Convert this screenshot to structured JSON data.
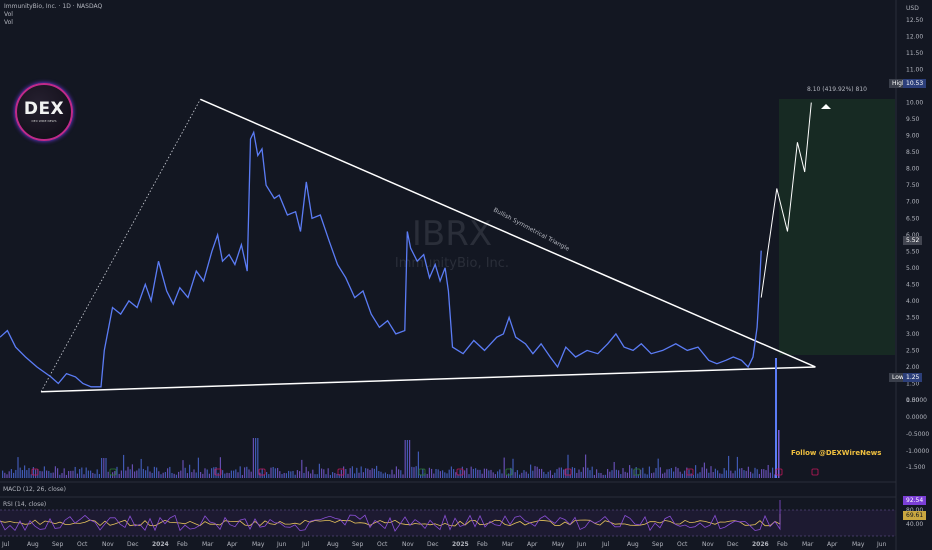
{
  "header": {
    "symbol": "ImmunityBio, Inc. · 1D · NASDAQ",
    "vol1": "Vol",
    "vol2": "Vol"
  },
  "watermark": {
    "ticker": "IBRX",
    "name": "ImmunityBio, Inc."
  },
  "logo": {
    "text": "DEX",
    "sub": "DEX WIRE NEWS"
  },
  "follow": "Follow @DEXWireNews",
  "pattern_label": "Bullish Symmetrical Triangle",
  "target_label": "8.10 (419.92%) 810",
  "indicators": {
    "macd": "MACD (12, 26, close)",
    "rsi": "RSI (14, close)"
  },
  "price_axis": {
    "currency": "USD",
    "ticks": [
      "12.50",
      "12.00",
      "11.50",
      "11.00",
      "10.50",
      "10.00",
      "9.50",
      "9.00",
      "8.50",
      "8.00",
      "7.50",
      "7.00",
      "6.50",
      "6.00",
      "5.50",
      "5.00",
      "4.50",
      "4.00",
      "3.50",
      "3.00",
      "2.50",
      "2.00",
      "1.50",
      "1.00"
    ],
    "high_label": "High",
    "high_value": "10.53",
    "current_value": "5.52",
    "low_label": "Low",
    "low_value": "1.25"
  },
  "macd_axis": {
    "ticks": [
      "0.5000",
      "0.0000",
      "-0.5000",
      "-1.0000",
      "-1.500"
    ]
  },
  "rsi_axis": {
    "ticks": [
      "80.00",
      "40.00"
    ],
    "rsi_value": "92.54",
    "ma_value": "69.61"
  },
  "time_axis": [
    "Jul",
    "Aug",
    "Sep",
    "Oct",
    "Nov",
    "Dec",
    "2024",
    "Feb",
    "Mar",
    "Apr",
    "May",
    "Jun",
    "Jul",
    "Aug",
    "Sep",
    "Oct",
    "Nov",
    "Dec",
    "2025",
    "Feb",
    "Mar",
    "Apr",
    "May",
    "Jun",
    "Jul",
    "Aug",
    "Sep",
    "Oct",
    "Nov",
    "Dec",
    "2026",
    "Feb",
    "Mar",
    "Apr",
    "May",
    "Jun"
  ],
  "colors": {
    "bg": "#131722",
    "price_line": "#5b7cf5",
    "price_line_hot": "#8f6cf5",
    "trend": "#ffffff",
    "target_box": "#1b3a25",
    "macd_hist": "#7a5cd6",
    "rsi_line": "#8a4fd6",
    "rsi_ma": "#e6c35c"
  },
  "chart_data": {
    "type": "line",
    "title": "ImmunityBio, Inc. · 1D · NASDAQ",
    "xlabel": "",
    "ylabel": "USD",
    "ylim": [
      1.0,
      12.5
    ],
    "series": [
      {
        "name": "",
        "points": [
          [
            "2023-07-01",
            2.9
          ],
          [
            "2023-07-10",
            3.1
          ],
          [
            "2023-07-20",
            2.6
          ],
          [
            "2023-08-01",
            2.3
          ],
          [
            "2023-08-15",
            2.0
          ],
          [
            "2023-09-01",
            1.7
          ],
          [
            "2023-09-10",
            1.5
          ],
          [
            "2023-09-20",
            1.8
          ],
          [
            "2023-10-01",
            1.7
          ],
          [
            "2023-10-10",
            1.5
          ],
          [
            "2023-10-20",
            1.4
          ],
          [
            "2023-11-01",
            1.4
          ],
          [
            "2023-11-05",
            2.5
          ],
          [
            "2023-11-15",
            3.8
          ],
          [
            "2023-11-25",
            3.6
          ],
          [
            "2023-12-05",
            4.0
          ],
          [
            "2023-12-15",
            3.8
          ],
          [
            "2023-12-25",
            4.5
          ],
          [
            "2024-01-01",
            4.0
          ],
          [
            "2024-01-10",
            5.2
          ],
          [
            "2024-01-20",
            4.3
          ],
          [
            "2024-01-28",
            3.9
          ],
          [
            "2024-02-05",
            4.4
          ],
          [
            "2024-02-15",
            4.1
          ],
          [
            "2024-02-25",
            4.9
          ],
          [
            "2024-03-05",
            4.6
          ],
          [
            "2024-03-15",
            5.5
          ],
          [
            "2024-03-22",
            6.0
          ],
          [
            "2024-03-28",
            5.2
          ],
          [
            "2024-04-05",
            5.4
          ],
          [
            "2024-04-12",
            5.1
          ],
          [
            "2024-04-20",
            5.7
          ],
          [
            "2024-04-27",
            4.9
          ],
          [
            "2024-05-01",
            8.9
          ],
          [
            "2024-05-05",
            9.1
          ],
          [
            "2024-05-10",
            8.4
          ],
          [
            "2024-05-15",
            8.6
          ],
          [
            "2024-05-20",
            7.5
          ],
          [
            "2024-05-30",
            7.1
          ],
          [
            "2024-06-05",
            7.2
          ],
          [
            "2024-06-15",
            6.6
          ],
          [
            "2024-06-25",
            6.7
          ],
          [
            "2024-07-01",
            6.1
          ],
          [
            "2024-07-08",
            7.6
          ],
          [
            "2024-07-15",
            6.5
          ],
          [
            "2024-07-25",
            6.6
          ],
          [
            "2024-08-05",
            5.8
          ],
          [
            "2024-08-15",
            5.1
          ],
          [
            "2024-08-25",
            4.7
          ],
          [
            "2024-09-05",
            4.1
          ],
          [
            "2024-09-15",
            4.3
          ],
          [
            "2024-09-25",
            3.6
          ],
          [
            "2024-10-05",
            3.2
          ],
          [
            "2024-10-15",
            3.4
          ],
          [
            "2024-10-25",
            3.0
          ],
          [
            "2024-11-05",
            3.1
          ],
          [
            "2024-11-08",
            6.1
          ],
          [
            "2024-11-12",
            5.6
          ],
          [
            "2024-11-20",
            5.2
          ],
          [
            "2024-11-28",
            5.4
          ],
          [
            "2024-12-05",
            4.7
          ],
          [
            "2024-12-12",
            5.1
          ],
          [
            "2024-12-18",
            4.6
          ],
          [
            "2024-12-24",
            5.0
          ],
          [
            "2024-12-28",
            4.3
          ],
          [
            "2025-01-02",
            2.6
          ],
          [
            "2025-01-15",
            2.4
          ],
          [
            "2025-01-28",
            2.8
          ],
          [
            "2025-02-10",
            2.5
          ],
          [
            "2025-02-25",
            2.9
          ],
          [
            "2025-03-05",
            3.0
          ],
          [
            "2025-03-12",
            3.5
          ],
          [
            "2025-03-20",
            2.9
          ],
          [
            "2025-04-01",
            2.7
          ],
          [
            "2025-04-10",
            2.4
          ],
          [
            "2025-04-20",
            2.7
          ],
          [
            "2025-05-01",
            2.3
          ],
          [
            "2025-05-10",
            2.0
          ],
          [
            "2025-05-20",
            2.6
          ],
          [
            "2025-06-01",
            2.3
          ],
          [
            "2025-06-15",
            2.5
          ],
          [
            "2025-06-28",
            2.4
          ],
          [
            "2025-07-10",
            2.7
          ],
          [
            "2025-07-20",
            3.0
          ],
          [
            "2025-07-30",
            2.6
          ],
          [
            "2025-08-10",
            2.5
          ],
          [
            "2025-08-20",
            2.7
          ],
          [
            "2025-09-01",
            2.4
          ],
          [
            "2025-09-15",
            2.5
          ],
          [
            "2025-10-01",
            2.7
          ],
          [
            "2025-10-15",
            2.5
          ],
          [
            "2025-10-28",
            2.6
          ],
          [
            "2025-11-10",
            2.2
          ],
          [
            "2025-11-20",
            2.1
          ],
          [
            "2025-12-01",
            2.2
          ],
          [
            "2025-12-10",
            2.3
          ],
          [
            "2025-12-20",
            2.2
          ],
          [
            "2025-12-28",
            2.0
          ],
          [
            "2026-01-03",
            2.3
          ],
          [
            "2026-01-08",
            3.2
          ],
          [
            "2026-01-11",
            4.5
          ],
          [
            "2026-01-13",
            5.52
          ]
        ]
      }
    ],
    "projection": [
      [
        "2026-01-13",
        4.1
      ],
      [
        "2026-02-01",
        7.4
      ],
      [
        "2026-02-14",
        6.1
      ],
      [
        "2026-02-26",
        8.8
      ],
      [
        "2026-03-07",
        7.9
      ],
      [
        "2026-03-15",
        10.0
      ]
    ],
    "annotations": {
      "triangle_apex_upper": [
        "2024-03-01",
        10.1
      ],
      "triangle_lower_start": [
        "2023-08-20",
        1.25
      ],
      "triangle_apex": [
        "2026-03-20",
        2.0
      ],
      "dotted_start": [
        "2023-08-20",
        1.25
      ],
      "target_box": {
        "from": "2026-01-18",
        "to": "2026-04-30",
        "ymin": 2.0,
        "ymax": 10.0
      }
    }
  }
}
